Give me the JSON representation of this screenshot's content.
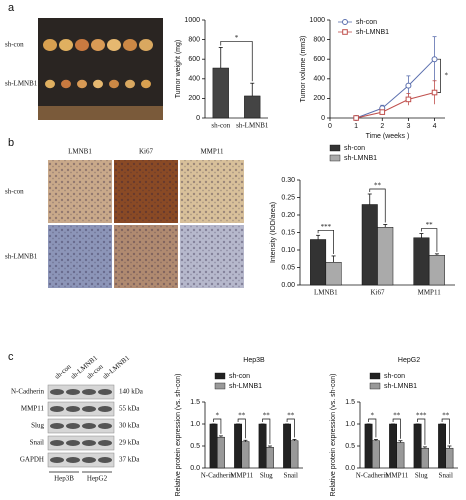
{
  "panel_labels": [
    "a",
    "b",
    "c"
  ],
  "photo": {
    "rows": [
      "sh-con",
      "sh-LMNB1"
    ]
  },
  "ihc": {
    "stains": [
      "LMNB1",
      "Ki67",
      "MMP11"
    ],
    "rows": [
      "sh-con",
      "sh-LMNB1"
    ]
  },
  "blot": {
    "lanes": [
      "sh-con",
      "sh-LMNB1",
      "sh-con",
      "sh-LMNB1"
    ],
    "rows": [
      {
        "protein": "N-Cadherin",
        "size": "140 kDa"
      },
      {
        "protein": "MMP11",
        "size": "55 kDa"
      },
      {
        "protein": "Slug",
        "size": "30 kDa"
      },
      {
        "protein": "Snail",
        "size": "29 kDa"
      },
      {
        "protein": "GAPDH",
        "size": "37 kDa"
      }
    ],
    "cell_lines": [
      "Hep3B",
      "HepG2"
    ]
  },
  "chart_data": [
    {
      "type": "bar",
      "ylabel": "Tumor weight (mg)",
      "categories": [
        "sh-con",
        "sh-LMNB1"
      ],
      "values": [
        510,
        225
      ],
      "errors": [
        210,
        130
      ],
      "color": "#444444",
      "ylim": [
        0,
        1000
      ],
      "yticks": [
        0,
        200,
        400,
        600,
        800,
        1000
      ],
      "annotation": "*"
    },
    {
      "type": "line",
      "xlabel": "Time (weeks )",
      "ylabel": "Tumor volume (mm3)",
      "x": [
        1,
        2,
        3,
        4
      ],
      "series": [
        {
          "name": "sh-con",
          "color": "#5b6fae",
          "marker": "circle",
          "values": [
            0,
            100,
            330,
            600
          ],
          "errors": [
            0,
            30,
            100,
            230
          ]
        },
        {
          "name": "sh-LMNB1",
          "color": "#c0504d",
          "marker": "square",
          "values": [
            0,
            60,
            190,
            260
          ],
          "errors": [
            0,
            20,
            60,
            120
          ]
        }
      ],
      "xlim": [
        0,
        4.4
      ],
      "xticks": [
        0,
        1,
        2,
        3,
        4
      ],
      "ylim": [
        0,
        1000
      ],
      "yticks": [
        0,
        200,
        400,
        600,
        800,
        1000
      ],
      "annotation": "*",
      "legend": "top-left"
    },
    {
      "type": "bar",
      "ylabel": "Intensity (IOD/area)",
      "categories": [
        "LMNB1",
        "Ki67",
        "MMP11"
      ],
      "series": [
        {
          "name": "sh-con",
          "color": "#333333",
          "values": [
            0.13,
            0.23,
            0.135
          ],
          "errors": [
            0.012,
            0.03,
            0.012
          ]
        },
        {
          "name": "sh-LMNB1",
          "color": "#aaaaaa",
          "values": [
            0.065,
            0.165,
            0.085
          ],
          "errors": [
            0.018,
            0.008,
            0.004
          ]
        }
      ],
      "ylim": [
        0,
        0.3
      ],
      "yticks": [
        {
          "value": 0,
          "label": "0.00"
        },
        {
          "value": 0.05,
          "label": "0.05"
        },
        {
          "value": 0.1,
          "label": "0.10"
        },
        {
          "value": 0.15,
          "label": "0.15"
        },
        {
          "value": 0.2,
          "label": "0.20"
        },
        {
          "value": 0.25,
          "label": "0.25"
        },
        {
          "value": 0.3,
          "label": "0.30"
        }
      ],
      "annotations": [
        "***",
        "**",
        "**"
      ],
      "legend": "top"
    },
    {
      "type": "bar",
      "title": "Hep3B",
      "ylabel": "Relative protein expression (vs. sh-con)",
      "categories": [
        "N-Cadherin",
        "MMP11",
        "Slug",
        "Snail"
      ],
      "series": [
        {
          "name": "sh-con",
          "color": "#222222",
          "values": [
            1,
            1,
            1,
            1
          ],
          "errors": [
            0,
            0,
            0,
            0
          ]
        },
        {
          "name": "sh-LMNB1",
          "color": "#999999",
          "values": [
            0.7,
            0.6,
            0.47,
            0.62
          ],
          "errors": [
            0.03,
            0.03,
            0.03,
            0.03
          ]
        }
      ],
      "ylim": [
        0,
        1.5
      ],
      "yticks": [
        {
          "value": 0,
          "label": "0.0"
        },
        {
          "value": 0.5,
          "label": "0.5"
        },
        {
          "value": 1,
          "label": "1.0"
        },
        {
          "value": 1.5,
          "label": "1.5"
        }
      ],
      "annotations": [
        "*",
        "**",
        "**",
        "**"
      ],
      "legend": "top"
    },
    {
      "type": "bar",
      "title": "HepG2",
      "ylabel": "Relative protein expression (vs. sh-con)",
      "categories": [
        "N-Cadherin",
        "MMP11",
        "Slug",
        "Snail"
      ],
      "series": [
        {
          "name": "sh-con",
          "color": "#222222",
          "values": [
            1,
            1,
            1,
            1
          ],
          "errors": [
            0,
            0,
            0,
            0
          ]
        },
        {
          "name": "sh-LMNB1",
          "color": "#999999",
          "values": [
            0.62,
            0.58,
            0.45,
            0.45
          ],
          "errors": [
            0.03,
            0.04,
            0.03,
            0.05
          ]
        }
      ],
      "ylim": [
        0,
        1.5
      ],
      "yticks": [
        {
          "value": 0,
          "label": "0.0"
        },
        {
          "value": 0.5,
          "label": "0.5"
        },
        {
          "value": 1,
          "label": "1.0"
        },
        {
          "value": 1.5,
          "label": "1.5"
        }
      ],
      "annotations": [
        "*",
        "**",
        "***",
        "**"
      ],
      "legend": "top"
    }
  ]
}
